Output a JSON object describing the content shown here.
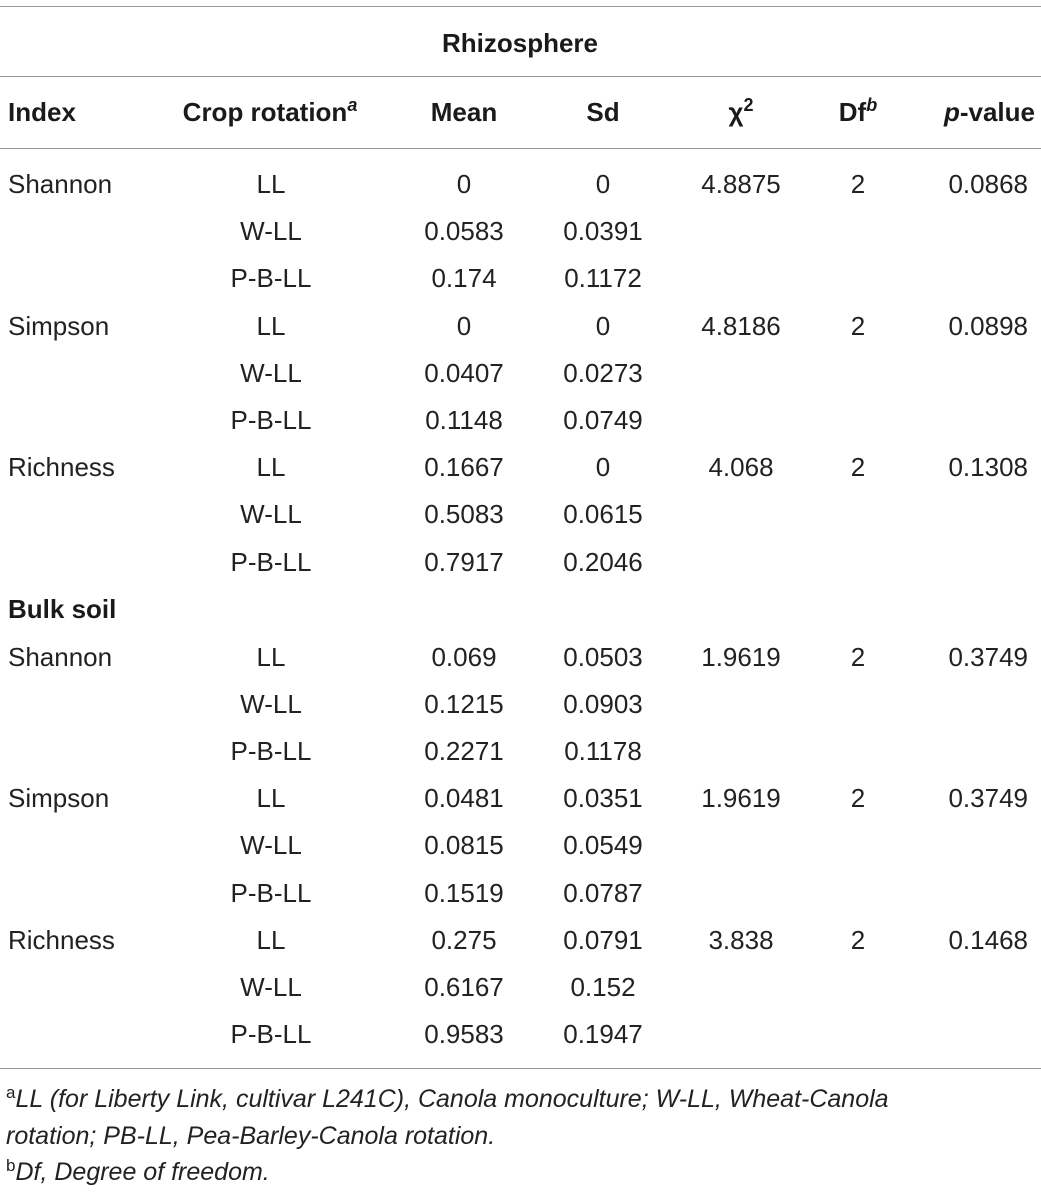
{
  "table": {
    "title": "Rhizosphere",
    "headers": {
      "index": "Index",
      "crop_rotation": "Crop rotation",
      "crop_rotation_sup": "a",
      "mean": "Mean",
      "sd": "Sd",
      "chi": "χ",
      "chi_sup": "2",
      "df": "Df",
      "df_sup": "b",
      "p_ital": "p",
      "p_rest": "-value"
    },
    "section2_label": "Bulk soil",
    "rows": [
      {
        "index": "Shannon",
        "crop": "LL",
        "mean": "0",
        "sd": "0",
        "chi": "4.8875",
        "df": "2",
        "p": "0.0868"
      },
      {
        "index": "",
        "crop": "W-LL",
        "mean": "0.0583",
        "sd": "0.0391",
        "chi": "",
        "df": "",
        "p": ""
      },
      {
        "index": "",
        "crop": "P-B-LL",
        "mean": "0.174",
        "sd": "0.1172",
        "chi": "",
        "df": "",
        "p": ""
      },
      {
        "index": "Simpson",
        "crop": "LL",
        "mean": "0",
        "sd": "0",
        "chi": "4.8186",
        "df": "2",
        "p": "0.0898"
      },
      {
        "index": "",
        "crop": "W-LL",
        "mean": "0.0407",
        "sd": "0.0273",
        "chi": "",
        "df": "",
        "p": ""
      },
      {
        "index": "",
        "crop": "P-B-LL",
        "mean": "0.1148",
        "sd": "0.0749",
        "chi": "",
        "df": "",
        "p": ""
      },
      {
        "index": "Richness",
        "crop": "LL",
        "mean": "0.1667",
        "sd": "0",
        "chi": "4.068",
        "df": "2",
        "p": "0.1308"
      },
      {
        "index": "",
        "crop": "W-LL",
        "mean": "0.5083",
        "sd": "0.0615",
        "chi": "",
        "df": "",
        "p": ""
      },
      {
        "index": "",
        "crop": "P-B-LL",
        "mean": "0.7917",
        "sd": "0.2046",
        "chi": "",
        "df": "",
        "p": ""
      },
      {
        "index": "Shannon",
        "crop": "LL",
        "mean": "0.069",
        "sd": "0.0503",
        "chi": "1.9619",
        "df": "2",
        "p": "0.3749"
      },
      {
        "index": "",
        "crop": "W-LL",
        "mean": "0.1215",
        "sd": "0.0903",
        "chi": "",
        "df": "",
        "p": ""
      },
      {
        "index": "",
        "crop": "P-B-LL",
        "mean": "0.2271",
        "sd": "0.1178",
        "chi": "",
        "df": "",
        "p": ""
      },
      {
        "index": "Simpson",
        "crop": "LL",
        "mean": "0.0481",
        "sd": "0.0351",
        "chi": "1.9619",
        "df": "2",
        "p": "0.3749"
      },
      {
        "index": "",
        "crop": "W-LL",
        "mean": "0.0815",
        "sd": "0.0549",
        "chi": "",
        "df": "",
        "p": ""
      },
      {
        "index": "",
        "crop": "P-B-LL",
        "mean": "0.1519",
        "sd": "0.0787",
        "chi": "",
        "df": "",
        "p": ""
      },
      {
        "index": "Richness",
        "crop": "LL",
        "mean": "0.275",
        "sd": "0.0791",
        "chi": "3.838",
        "df": "2",
        "p": "0.1468"
      },
      {
        "index": "",
        "crop": "W-LL",
        "mean": "0.6167",
        "sd": "0.152",
        "chi": "",
        "df": "",
        "p": ""
      },
      {
        "index": "",
        "crop": "P-B-LL",
        "mean": "0.9583",
        "sd": "0.1947",
        "chi": "",
        "df": "",
        "p": ""
      }
    ]
  },
  "footnotes": {
    "a_mark": "a",
    "a_line1": "LL (for Liberty Link, cultivar L241C), Canola monoculture; W-LL, Wheat-Canola",
    "a_line2": "rotation; PB-LL, Pea-Barley-Canola rotation.",
    "b_mark": "b",
    "b_text": "Df, Degree of freedom."
  }
}
